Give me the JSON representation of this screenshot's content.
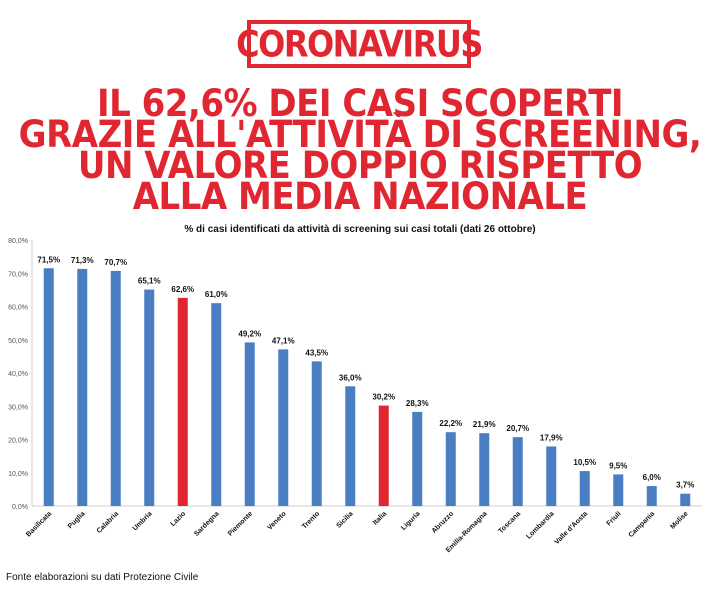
{
  "brand": "CORONAVIRUS",
  "headline": [
    "IL 62,6% DEI CASI SCOPERTI",
    "GRAZIE ALL'ATTIVITÀ DI SCREENING,",
    "UN VALORE DOPPIO RISPETTO",
    "ALLA MEDIA NAZIONALE"
  ],
  "colors": {
    "accent": "#e02731",
    "bar": "#4a7ec3",
    "highlight": "#e02731"
  },
  "chart_data": {
    "type": "bar",
    "title": "% di casi identificati da attività di screening sui casi totali (dati 26 ottobre)",
    "categories": [
      "Basilicata",
      "Puglia",
      "Calabria",
      "Umbria",
      "Lazio",
      "Sardegna",
      "Piemonte",
      "Veneto",
      "Trento",
      "Sicilia",
      "Italia",
      "Liguria",
      "Abruzzo",
      "Emilia-Romagna",
      "Toscana",
      "Lombardia",
      "Valle d'Aosta",
      "Friuli",
      "Campania",
      "Molise"
    ],
    "values": [
      71.5,
      71.3,
      70.7,
      65.1,
      62.6,
      61.0,
      49.2,
      47.1,
      43.5,
      36.0,
      30.2,
      28.3,
      22.2,
      21.9,
      20.7,
      17.9,
      10.5,
      9.5,
      6.0,
      3.7
    ],
    "value_labels": [
      "71,5%",
      "71,3%",
      "70,7%",
      "65,1%",
      "62,6%",
      "61,0%",
      "49,2%",
      "47,1%",
      "43,5%",
      "36,0%",
      "30,2%",
      "28,3%",
      "22,2%",
      "21,9%",
      "20,7%",
      "17,9%",
      "10,5%",
      "9,5%",
      "6,0%",
      "3,7%"
    ],
    "highlighted": [
      "Lazio",
      "Italia"
    ],
    "yticks": [
      "0,0%",
      "10,0%",
      "20,0%",
      "30,0%",
      "40,0%",
      "50,0%",
      "60,0%",
      "70,0%",
      "80,0%"
    ],
    "ylim": [
      0,
      80
    ],
    "grid": false,
    "legend": "none"
  },
  "source": "Fonte elaborazioni su dati Protezione Civile"
}
